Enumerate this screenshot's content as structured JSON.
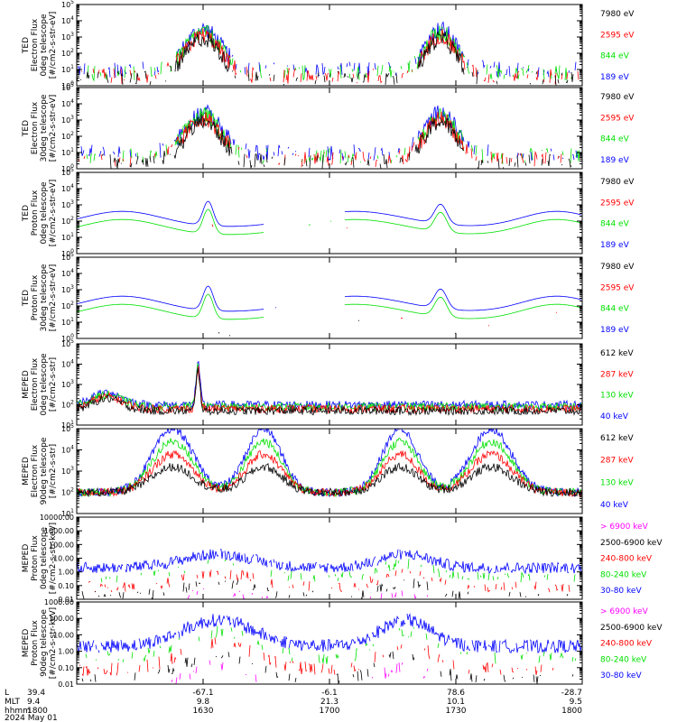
{
  "figure": {
    "date_label": "2024 May 01",
    "footer_rows": [
      {
        "label": "L",
        "values": [
          "39.4",
          "-67.1",
          "-6.1",
          "78.6",
          "-28.7"
        ]
      },
      {
        "label": "MLT",
        "values": [
          "9.4",
          "9.8",
          "21.3",
          "10.1",
          "9.5"
        ]
      },
      {
        "label": "hhmm",
        "values": [
          "1800",
          "1630",
          "1700",
          "1730",
          "1800"
        ]
      }
    ]
  },
  "colors": {
    "black": "#000000",
    "red": "#ff0000",
    "green": "#00e000",
    "blue": "#0000ff",
    "magenta": "#ff00ff"
  },
  "chart_data": [
    {
      "type": "line",
      "id": "ted-e-0",
      "ylabel_lines": [
        "TED",
        "Electron Flux",
        "0deg telescope",
        "[#/cm2-s-str-eV]"
      ],
      "yscale": "log",
      "ylim_exp": [
        0,
        5
      ],
      "ytick_labels": [
        "10^0",
        "10^1",
        "10^2",
        "10^3",
        "10^4",
        "10^5"
      ],
      "legend": [
        {
          "label": "7980 eV",
          "color": "#000000"
        },
        {
          "label": "2595 eV",
          "color": "#ff0000"
        },
        {
          "label": "844 eV",
          "color": "#00e000"
        },
        {
          "label": "189 eV",
          "color": "#0000ff"
        }
      ]
    },
    {
      "type": "line",
      "id": "ted-e-30",
      "ylabel_lines": [
        "TED",
        "Electron Flux",
        "30deg telescope",
        "[#/cm2-s-str-eV]"
      ],
      "yscale": "log",
      "ylim_exp": [
        0,
        5
      ],
      "ytick_labels": [
        "10^0",
        "10^1",
        "10^2",
        "10^3",
        "10^4",
        "10^5"
      ],
      "legend": [
        {
          "label": "7980 eV",
          "color": "#000000"
        },
        {
          "label": "2595 eV",
          "color": "#ff0000"
        },
        {
          "label": "844 eV",
          "color": "#00e000"
        },
        {
          "label": "189 eV",
          "color": "#0000ff"
        }
      ]
    },
    {
      "type": "line",
      "id": "ted-p-0",
      "ylabel_lines": [
        "TED",
        "Proton Flux",
        "0deg telescope",
        "[#/cm2-s-str-eV]"
      ],
      "yscale": "log",
      "ylim_exp": [
        0,
        5
      ],
      "ytick_labels": [
        "10^0",
        "10^1",
        "10^2",
        "10^3",
        "10^4",
        "10^5"
      ],
      "legend": [
        {
          "label": "7980 eV",
          "color": "#000000"
        },
        {
          "label": "2595 eV",
          "color": "#ff0000"
        },
        {
          "label": "844 eV",
          "color": "#00e000"
        },
        {
          "label": "189 eV",
          "color": "#0000ff"
        }
      ]
    },
    {
      "type": "line",
      "id": "ted-p-30",
      "ylabel_lines": [
        "TED",
        "Proton Flux",
        "30deg telescope",
        "[#/cm2-s-str-eV]"
      ],
      "yscale": "log",
      "ylim_exp": [
        0,
        5
      ],
      "ytick_labels": [
        "10^0",
        "10^1",
        "10^2",
        "10^3",
        "10^4",
        "10^5"
      ],
      "legend": [
        {
          "label": "7980 eV",
          "color": "#000000"
        },
        {
          "label": "2595 eV",
          "color": "#ff0000"
        },
        {
          "label": "844 eV",
          "color": "#00e000"
        },
        {
          "label": "189 eV",
          "color": "#0000ff"
        }
      ]
    },
    {
      "type": "line",
      "id": "meped-e-0",
      "ylabel_lines": [
        "MEPED",
        "Electron Flux",
        "0deg telescope",
        "[#/cm2-s-str]"
      ],
      "yscale": "log",
      "ylim_exp": [
        1,
        5
      ],
      "ytick_labels": [
        "10^1",
        "10^2",
        "10^3",
        "10^4",
        "10^5"
      ],
      "legend": [
        {
          "label": "612 keV",
          "color": "#000000"
        },
        {
          "label": "287 keV",
          "color": "#ff0000"
        },
        {
          "label": "130 keV",
          "color": "#00e000"
        },
        {
          "label": "40 keV",
          "color": "#0000ff"
        }
      ]
    },
    {
      "type": "line",
      "id": "meped-e-90",
      "ylabel_lines": [
        "MEPED",
        "Electron Flux",
        "90deg telescope",
        "[#/cm2-s-str]"
      ],
      "yscale": "log",
      "ylim_exp": [
        1,
        5
      ],
      "ytick_labels": [
        "10^1",
        "10^2",
        "10^3",
        "10^4",
        "10^5"
      ],
      "legend": [
        {
          "label": "612 keV",
          "color": "#000000"
        },
        {
          "label": "287 keV",
          "color": "#ff0000"
        },
        {
          "label": "130 keV",
          "color": "#00e000"
        },
        {
          "label": "40 keV",
          "color": "#0000ff"
        }
      ]
    },
    {
      "type": "line",
      "id": "meped-p-0",
      "ylabel_lines": [
        "MEPED",
        "Proton Flux",
        "0deg telescope",
        "[#/cm2-s-str-keV]"
      ],
      "yscale": "log",
      "ylim_exp": [
        -2,
        4
      ],
      "ytick_labels": [
        "0.01",
        "0.10",
        "1.00",
        "10.00",
        "100.00",
        "1000.00",
        "10000.00"
      ],
      "legend": [
        {
          "label": "> 6900 keV",
          "color": "#ff00ff"
        },
        {
          "label": "2500-6900 keV",
          "color": "#000000"
        },
        {
          "label": "240-800 keV",
          "color": "#ff0000"
        },
        {
          "label": "80-240 keV",
          "color": "#00e000"
        },
        {
          "label": "30-80 keV",
          "color": "#0000ff"
        }
      ]
    },
    {
      "type": "line",
      "id": "meped-p-90",
      "ylabel_lines": [
        "MEPED",
        "Proton Flux",
        "90deg telescope",
        "[#/cm2-s-str-keV]"
      ],
      "yscale": "log",
      "ylim_exp": [
        -2,
        3
      ],
      "ytick_labels": [
        "0.01",
        "0.10",
        "1.00",
        "10.00",
        "100.00",
        "1000.00"
      ],
      "legend": [
        {
          "label": "> 6900 keV",
          "color": "#ff00ff"
        },
        {
          "label": "2500-6900 keV",
          "color": "#000000"
        },
        {
          "label": "240-800 keV",
          "color": "#ff0000"
        },
        {
          "label": "80-240 keV",
          "color": "#00e000"
        },
        {
          "label": "30-80 keV",
          "color": "#0000ff"
        }
      ]
    }
  ]
}
